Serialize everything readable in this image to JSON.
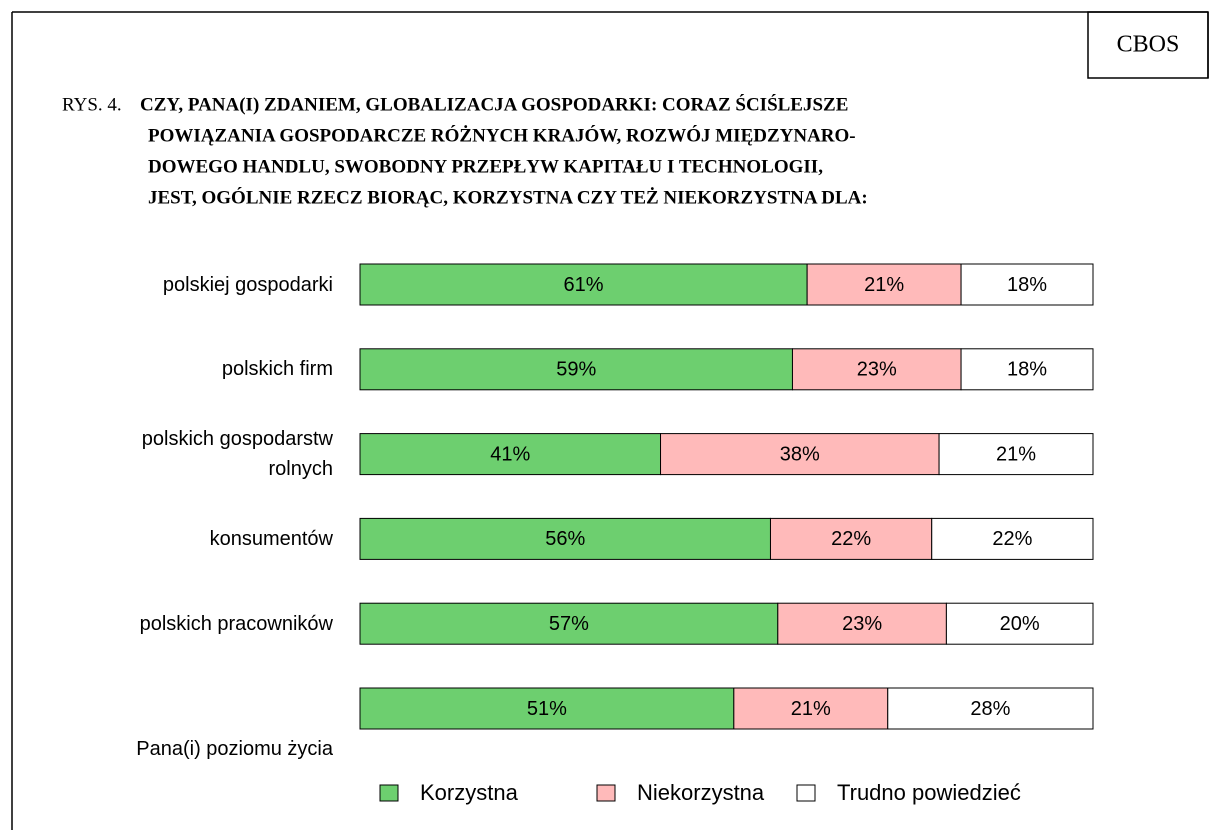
{
  "chart_data": {
    "type": "stacked-bar-horizontal",
    "badge": "CBOS",
    "label": "RYS. 4.",
    "title": [
      "CZY, PANA(I) ZDANIEM, GLOBALIZACJA GOSPODARKI: CORAZ ŚCIŚLEJSZE",
      "POWIĄZANIA GOSPODARCZE RÓŻNYCH KRAJÓW, ROZWÓJ MIĘDZYNARO-",
      "DOWEGO HANDLU, SWOBODNY PRZEPŁYW KAPITAŁU I TECHNOLOGII,",
      "JEST, OGÓLNIE RZECZ BIORĄC, KORZYSTNA CZY TEŻ NIEKORZYSTNA DLA:"
    ],
    "categories": [
      "polskiej gospodarki",
      "polskich firm",
      "polskich gospodarstw rolnych",
      "konsumentów",
      "polskich pracowników",
      "Pana(i) poziomu życia"
    ],
    "series": [
      {
        "name": "Korzystna",
        "color": "#6dcf6f",
        "values": [
          61,
          59,
          41,
          56,
          57,
          51
        ],
        "value_labels": [
          "61%",
          "59%",
          "41%",
          "56%",
          "57%",
          "51%"
        ]
      },
      {
        "name": "Niekorzystna",
        "color": "#ffbaba",
        "values": [
          21,
          23,
          38,
          22,
          23,
          21
        ],
        "value_labels": [
          "21%",
          "23%",
          "38%",
          "22%",
          "23%",
          "21%"
        ]
      },
      {
        "name": "Trudno powiedzieć",
        "color": "#ffffff",
        "values": [
          18,
          18,
          21,
          22,
          20,
          28
        ],
        "value_labels": [
          "18%",
          "18%",
          "21%",
          "22%",
          "20%",
          "28%"
        ]
      }
    ]
  }
}
